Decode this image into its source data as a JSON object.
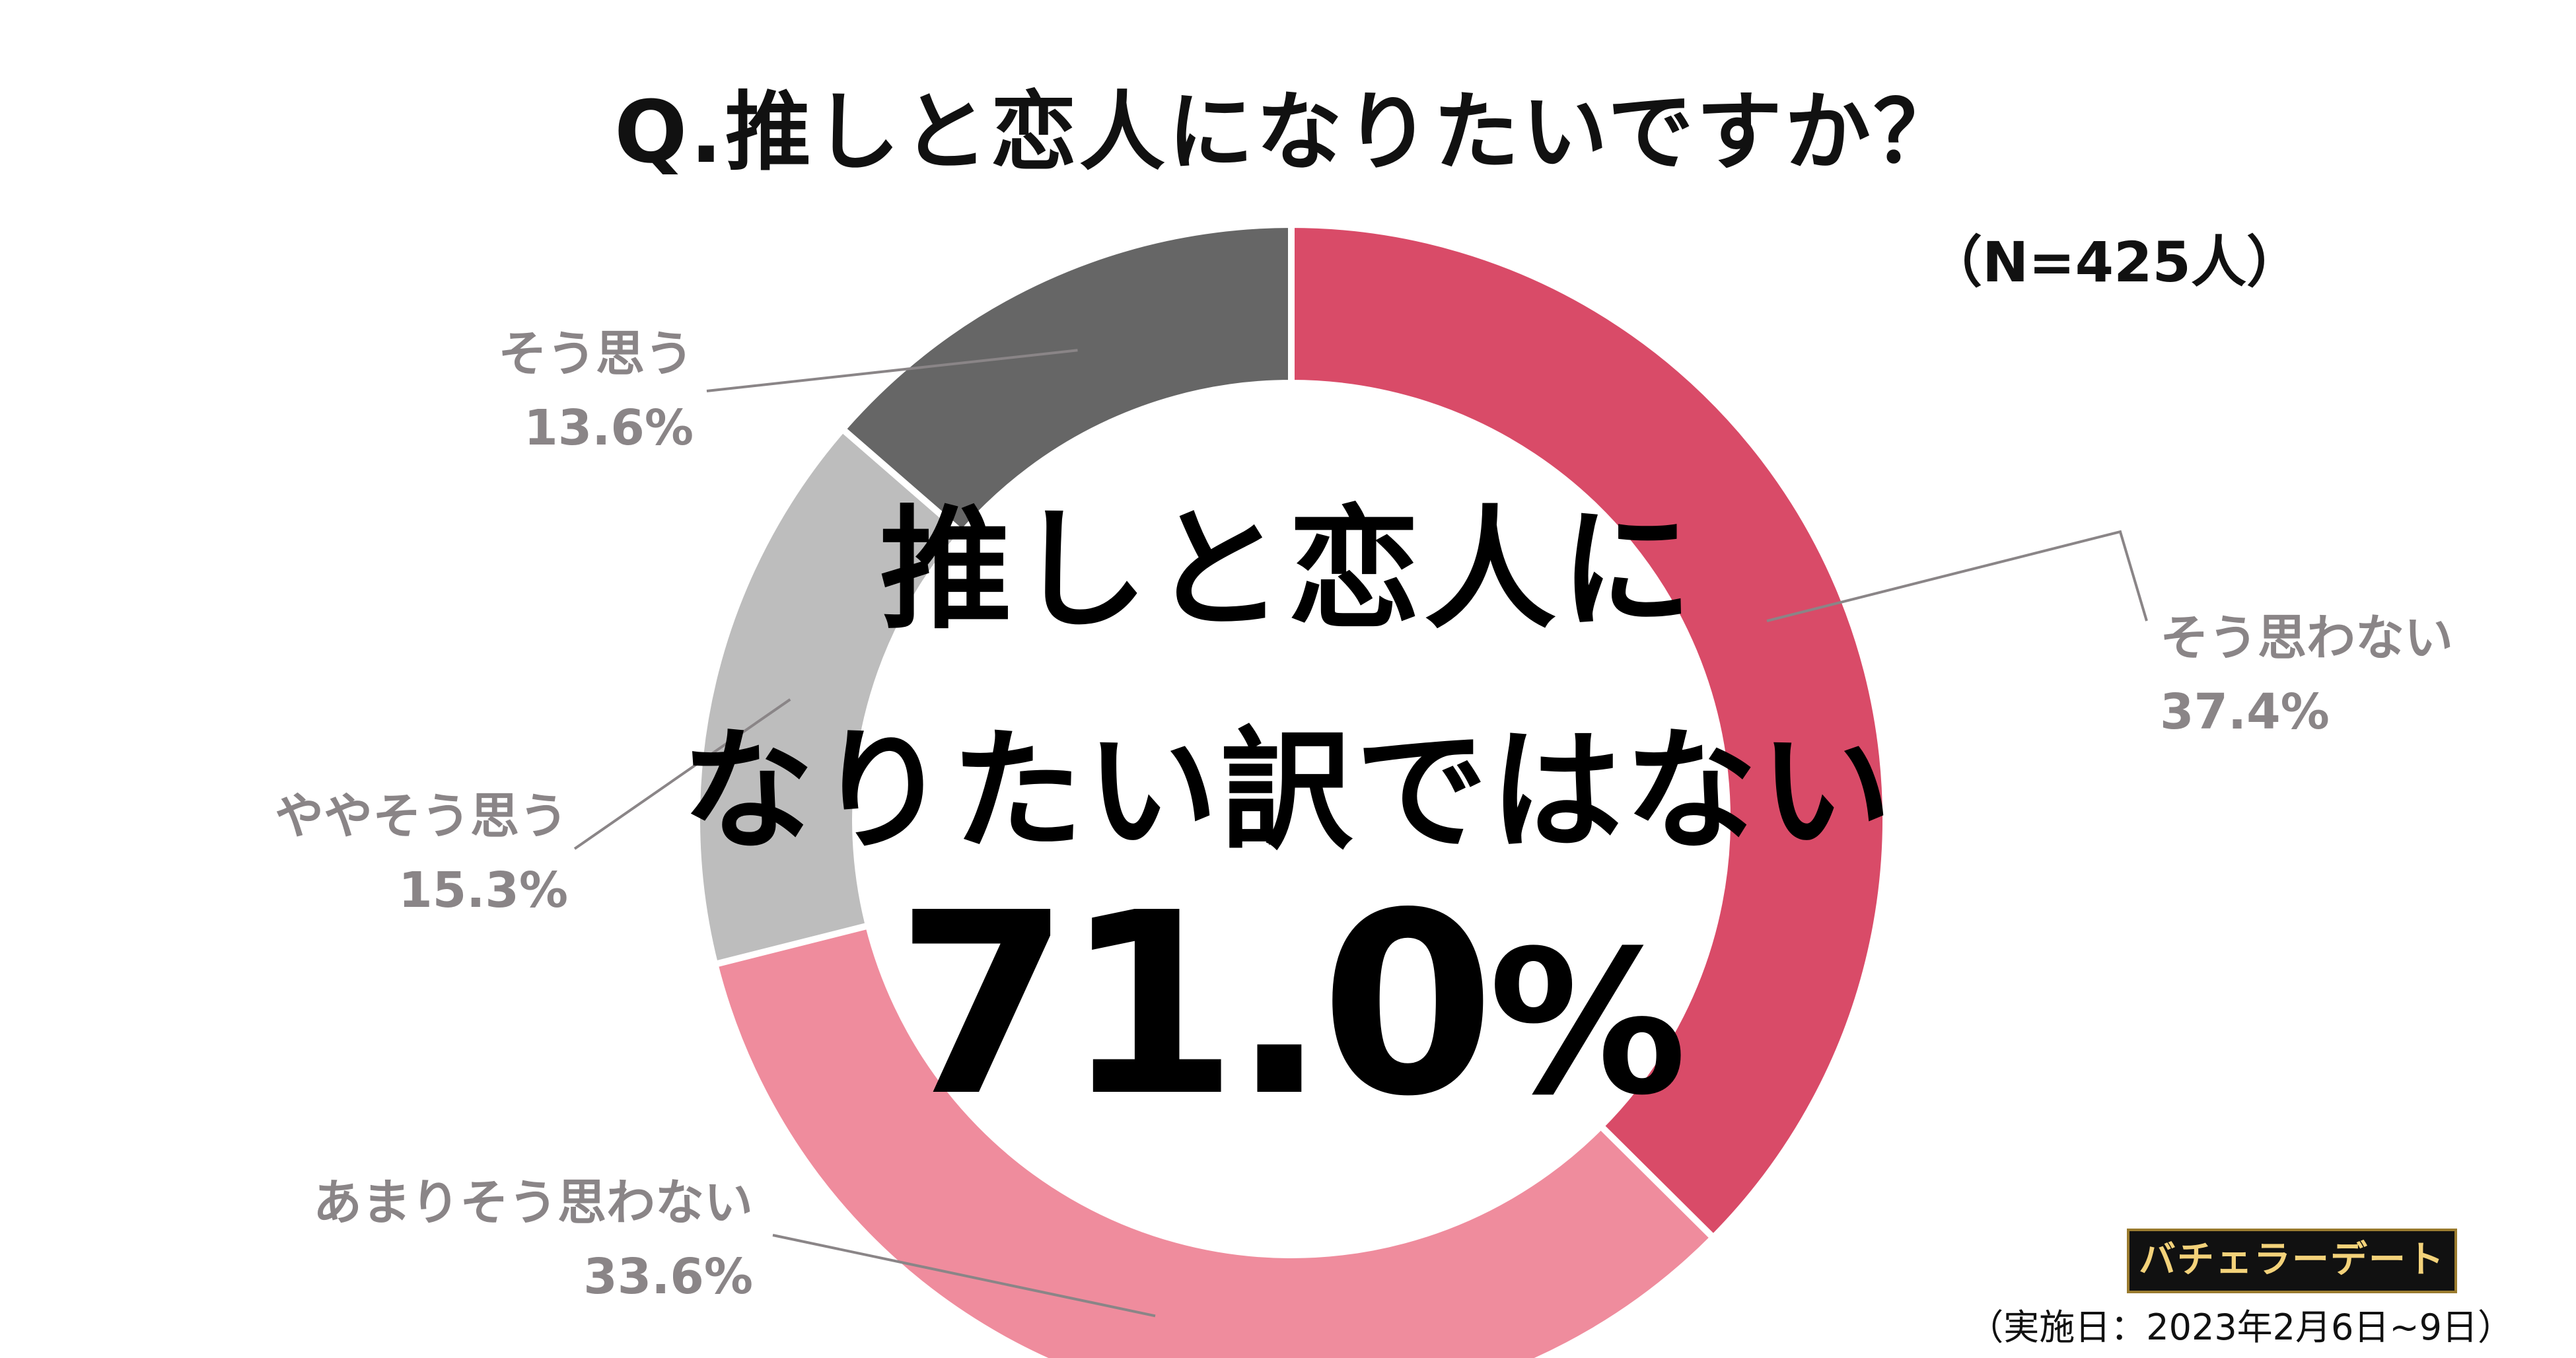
{
  "title": "Q.推しと恋人になりたいですか？",
  "sample": "（N=425人）",
  "center": {
    "line1": "推しと恋人に",
    "line2": "なりたい訳ではない",
    "pct_main": "71.0",
    "pct_unit": "%"
  },
  "logo": "バチェラーデート",
  "footnote": "（実施日：2023年2月6日~9日）",
  "chart_data": {
    "type": "pie",
    "donut": true,
    "categories": [
      "そう思わない",
      "あまりそう思わない",
      "ややそう思う",
      "そう思う"
    ],
    "values": [
      37.4,
      33.6,
      15.3,
      13.6
    ],
    "labels": [
      {
        "name": "そう思わない",
        "value": "37.4%"
      },
      {
        "name": "あまりそう思わない",
        "value": "33.6%"
      },
      {
        "name": "ややそう思う",
        "value": "15.3%"
      },
      {
        "name": "そう思う",
        "value": "13.6%"
      }
    ],
    "colors": [
      "#d94b68",
      "#ef8c9d",
      "#bdbdbd",
      "#666666"
    ],
    "start": "top (12 o'clock), clockwise"
  }
}
